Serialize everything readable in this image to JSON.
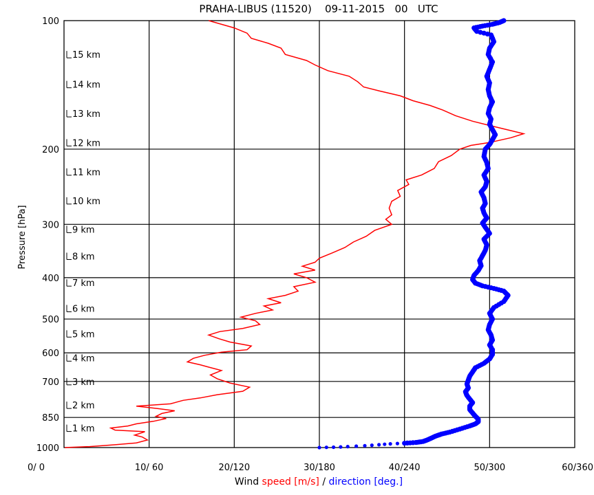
{
  "chart_data": {
    "type": "line",
    "title": "PRAHA-LIBUS (11520)    09-11-2015   00   UTC",
    "ylabel": "Pressure [hPa]",
    "xlabel_parts": {
      "prefix": "Wind",
      "speed": "speed",
      "speed_unit": "[m/s]",
      "slash": "/",
      "direction": "direction",
      "direction_unit": "[deg.]"
    },
    "y_scale": "log",
    "y_reversed": true,
    "ylim": [
      1000,
      100
    ],
    "y_ticks": [
      100,
      200,
      300,
      400,
      500,
      600,
      700,
      850,
      1000
    ],
    "x_ticks": [
      {
        "speed": 0,
        "dir": 0,
        "label": "0/  0"
      },
      {
        "speed": 10,
        "dir": 60,
        "label": "10/ 60"
      },
      {
        "speed": 20,
        "dir": 120,
        "label": "20/120"
      },
      {
        "speed": 30,
        "dir": 180,
        "label": "30/180"
      },
      {
        "speed": 40,
        "dir": 240,
        "label": "40/240"
      },
      {
        "speed": 50,
        "dir": 300,
        "label": "50/300"
      },
      {
        "speed": 60,
        "dir": 360,
        "label": "60/360"
      }
    ],
    "xlim_speed": [
      0,
      60
    ],
    "xlim_direction": [
      0,
      360
    ],
    "grid": true,
    "height_labels": [
      {
        "label": "1 km",
        "p": 900
      },
      {
        "label": "2 km",
        "p": 795
      },
      {
        "label": "3 km",
        "p": 700
      },
      {
        "label": "4 km",
        "p": 616
      },
      {
        "label": "5 km",
        "p": 541
      },
      {
        "label": "6 km",
        "p": 472
      },
      {
        "label": "7 km",
        "p": 411
      },
      {
        "label": "8 km",
        "p": 356
      },
      {
        "label": "9 km",
        "p": 308
      },
      {
        "label": "10 km",
        "p": 264
      },
      {
        "label": "11 km",
        "p": 226
      },
      {
        "label": "12 km",
        "p": 193
      },
      {
        "label": "13 km",
        "p": 165
      },
      {
        "label": "14 km",
        "p": 141
      },
      {
        "label": "15 km",
        "p": 120
      }
    ],
    "series": [
      {
        "name": "speed",
        "color": "#ff0000",
        "points": [
          [
            0.1,
            1000
          ],
          [
            3,
            995
          ],
          [
            6,
            985
          ],
          [
            8.5,
            975
          ],
          [
            9.8,
            960
          ],
          [
            9.2,
            945
          ],
          [
            8.3,
            935
          ],
          [
            9.5,
            918
          ],
          [
            6,
            910
          ],
          [
            5.5,
            900
          ],
          [
            7.5,
            890
          ],
          [
            8.5,
            880
          ],
          [
            10.5,
            868
          ],
          [
            12,
            855
          ],
          [
            10.8,
            845
          ],
          [
            11.5,
            832
          ],
          [
            13,
            820
          ],
          [
            11,
            810
          ],
          [
            8.5,
            800
          ],
          [
            12.5,
            790
          ],
          [
            14,
            775
          ],
          [
            16,
            765
          ],
          [
            18,
            752
          ],
          [
            21,
            738
          ],
          [
            21.8,
            722
          ],
          [
            19.5,
            706
          ],
          [
            18,
            690
          ],
          [
            17.2,
            676
          ],
          [
            18.5,
            660
          ],
          [
            17,
            648
          ],
          [
            16,
            640
          ],
          [
            14.5,
            630
          ],
          [
            15.2,
            618
          ],
          [
            16.5,
            608
          ],
          [
            18.5,
            598
          ],
          [
            21.5,
            590
          ],
          [
            22,
            578
          ],
          [
            19.5,
            566
          ],
          [
            18.2,
            556
          ],
          [
            17,
            545
          ],
          [
            18.3,
            535
          ],
          [
            21,
            526
          ],
          [
            23,
            515
          ],
          [
            22.5,
            505
          ],
          [
            20.8,
            495
          ],
          [
            22.5,
            485
          ],
          [
            24.5,
            476
          ],
          [
            23.5,
            466
          ],
          [
            25.5,
            458
          ],
          [
            24,
            448
          ],
          [
            26,
            440
          ],
          [
            27.5,
            430
          ],
          [
            27,
            420
          ],
          [
            29.5,
            410
          ],
          [
            28.5,
            400
          ],
          [
            27,
            392
          ],
          [
            29.5,
            384
          ],
          [
            28,
            376
          ],
          [
            29.5,
            368
          ],
          [
            30,
            360
          ],
          [
            31.5,
            350
          ],
          [
            33,
            340
          ],
          [
            34,
            330
          ],
          [
            35.5,
            320
          ],
          [
            36.5,
            310
          ],
          [
            38.5,
            300
          ],
          [
            37.8,
            292
          ],
          [
            38.5,
            285
          ],
          [
            38.2,
            275
          ],
          [
            38.5,
            265
          ],
          [
            39.5,
            258
          ],
          [
            39.2,
            250
          ],
          [
            40.5,
            242
          ],
          [
            40.2,
            236
          ],
          [
            42,
            230
          ],
          [
            43.5,
            222
          ],
          [
            44,
            214
          ],
          [
            45.5,
            207
          ],
          [
            46.5,
            200
          ],
          [
            47.8,
            196
          ],
          [
            50,
            193
          ],
          [
            52.5,
            188
          ],
          [
            54,
            184
          ],
          [
            52,
            180
          ],
          [
            50,
            176
          ],
          [
            48,
            172
          ],
          [
            46,
            167
          ],
          [
            44.5,
            162
          ],
          [
            43,
            158
          ],
          [
            41,
            154
          ],
          [
            39.5,
            150
          ],
          [
            37,
            146
          ],
          [
            35.2,
            143
          ],
          [
            34.5,
            139
          ],
          [
            33.5,
            135
          ],
          [
            31,
            131
          ],
          [
            29.5,
            127
          ],
          [
            28.5,
            124
          ],
          [
            26,
            120
          ],
          [
            25.5,
            116
          ],
          [
            24,
            113
          ],
          [
            22,
            110
          ],
          [
            21.5,
            107
          ],
          [
            20,
            104
          ],
          [
            17,
            100
          ]
        ]
      },
      {
        "name": "direction",
        "color": "#0000ff",
        "points": [
          [
            180,
            1000
          ],
          [
            190,
            998
          ],
          [
            200,
            995
          ],
          [
            212,
            990
          ],
          [
            222,
            985
          ],
          [
            230,
            980
          ],
          [
            240,
            977
          ],
          [
            248,
            973
          ],
          [
            253,
            968
          ],
          [
            256,
            960
          ],
          [
            259,
            950
          ],
          [
            262,
            940
          ],
          [
            266,
            930
          ],
          [
            272,
            920
          ],
          [
            279,
            905
          ],
          [
            286,
            890
          ],
          [
            290,
            880
          ],
          [
            292,
            870
          ],
          [
            292,
            858
          ],
          [
            290,
            845
          ],
          [
            288,
            830
          ],
          [
            286,
            815
          ],
          [
            286,
            800
          ],
          [
            288,
            785
          ],
          [
            286,
            770
          ],
          [
            284,
            755
          ],
          [
            283,
            740
          ],
          [
            285,
            725
          ],
          [
            284,
            710
          ],
          [
            285,
            695
          ],
          [
            286,
            680
          ],
          [
            288,
            665
          ],
          [
            290,
            650
          ],
          [
            296,
            635
          ],
          [
            300,
            620
          ],
          [
            302,
            605
          ],
          [
            302,
            590
          ],
          [
            300,
            575
          ],
          [
            302,
            560
          ],
          [
            301,
            545
          ],
          [
            299,
            530
          ],
          [
            300,
            515
          ],
          [
            302,
            500
          ],
          [
            300,
            485
          ],
          [
            303,
            470
          ],
          [
            310,
            455
          ],
          [
            313,
            440
          ],
          [
            310,
            430
          ],
          [
            303,
            424
          ],
          [
            295,
            418
          ],
          [
            290,
            412
          ],
          [
            288,
            404
          ],
          [
            289,
            395
          ],
          [
            292,
            385
          ],
          [
            294,
            375
          ],
          [
            293,
            365
          ],
          [
            295,
            355
          ],
          [
            297,
            345
          ],
          [
            298,
            335
          ],
          [
            296,
            325
          ],
          [
            300,
            315
          ],
          [
            297,
            305
          ],
          [
            295,
            298
          ],
          [
            298,
            290
          ],
          [
            296,
            282
          ],
          [
            295,
            275
          ],
          [
            297,
            268
          ],
          [
            296,
            260
          ],
          [
            294,
            252
          ],
          [
            297,
            245
          ],
          [
            298,
            238
          ],
          [
            296,
            230
          ],
          [
            299,
            222
          ],
          [
            298,
            215
          ],
          [
            296,
            208
          ],
          [
            297,
            200
          ],
          [
            300,
            195
          ],
          [
            302,
            190
          ],
          [
            304,
            185
          ],
          [
            302,
            180
          ],
          [
            300,
            175
          ],
          [
            301,
            170
          ],
          [
            299,
            165
          ],
          [
            300,
            160
          ],
          [
            302,
            155
          ],
          [
            300,
            150
          ],
          [
            299,
            145
          ],
          [
            300,
            140
          ],
          [
            298,
            135
          ],
          [
            300,
            130
          ],
          [
            302,
            125
          ],
          [
            299,
            120
          ],
          [
            300,
            116
          ],
          [
            303,
            112
          ],
          [
            301,
            108
          ],
          [
            291,
            106
          ],
          [
            289,
            104
          ],
          [
            295,
            103
          ],
          [
            302,
            102
          ],
          [
            307,
            101
          ],
          [
            310,
            100
          ]
        ]
      }
    ]
  }
}
